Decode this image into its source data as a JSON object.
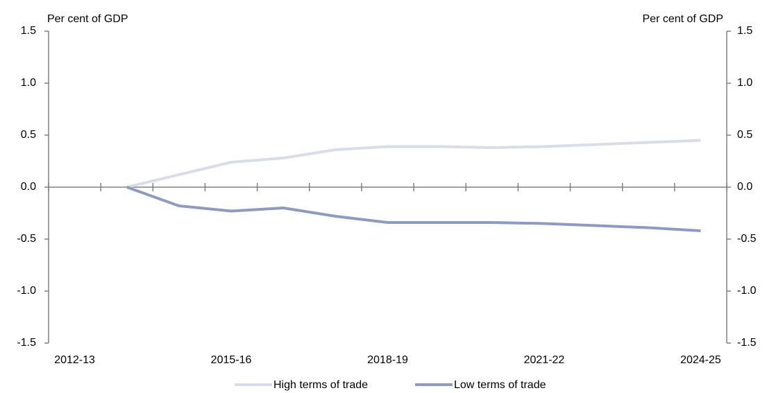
{
  "chart_data": {
    "type": "line",
    "y_label": "Per cent of GDP",
    "y2_label": "Per cent of GDP",
    "categories": [
      "2012-13",
      null,
      null,
      "2015-16",
      null,
      null,
      "2018-19",
      null,
      null,
      "2021-22",
      null,
      null,
      "2024-25"
    ],
    "series": [
      {
        "name": "High terms of trade",
        "color": "#d9dce9",
        "values": [
          null,
          0,
          0.12,
          0.24,
          0.28,
          0.36,
          0.39,
          0.39,
          0.38,
          0.39,
          0.41,
          0.43,
          0.45
        ]
      },
      {
        "name": "Low terms of trade",
        "color": "#8d9bbf",
        "values": [
          null,
          0,
          -0.18,
          -0.23,
          -0.2,
          -0.28,
          -0.34,
          -0.34,
          -0.34,
          -0.35,
          -0.37,
          -0.39,
          -0.42
        ]
      }
    ],
    "ylim": [
      -1.5,
      1.5
    ],
    "yticks": [
      -1.5,
      {
        "value": -1,
        "label": "-1.0"
      },
      -0.5,
      {
        "value": 0,
        "label": "0.0"
      },
      0.5,
      {
        "value": 1,
        "label": "1.0"
      },
      1.5
    ],
    "y2lim": [
      -1.5,
      1.5
    ],
    "y2ticks": [
      -1.5,
      {
        "value": -1,
        "label": "-1.0"
      },
      -0.5,
      {
        "value": 0,
        "label": "0.0"
      },
      0.5,
      {
        "value": 1,
        "label": "1.0"
      },
      1.5
    ],
    "grid": false,
    "legend": "bottom"
  }
}
